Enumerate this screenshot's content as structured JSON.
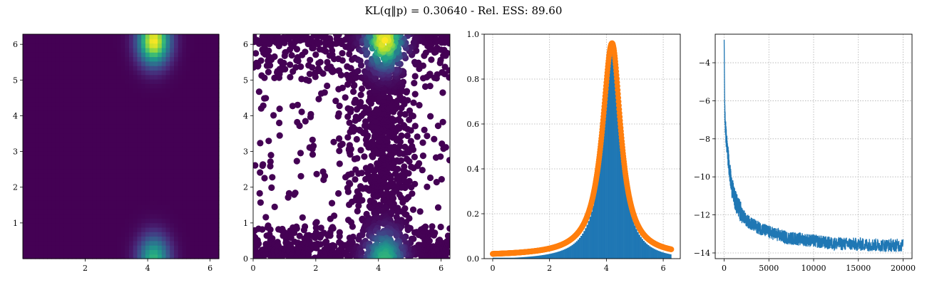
{
  "figure": {
    "title": "KL(q‖p) = 0.30640 - Rel. ESS: 89.60"
  },
  "colors": {
    "viridis_dark": "#440154",
    "viridis_teal": "#21918c",
    "viridis_green": "#5ec962",
    "viridis_yellow": "#fde725",
    "hist_blue": "#1f77b4",
    "density_orange": "#ff7f0e",
    "line_blue": "#1f77b4",
    "grid_gray": "#b0b0b0"
  },
  "chart_data": [
    {
      "type": "heatmap",
      "title": "",
      "xlabel": "",
      "ylabel": "",
      "xlim": [
        0,
        6.283
      ],
      "ylim": [
        0,
        6.283
      ],
      "xticks": [
        2,
        4,
        6
      ],
      "yticks": [
        1,
        2,
        3,
        4,
        5,
        6
      ],
      "grid": false,
      "density_peaks": [
        {
          "x": 4.2,
          "y": 6.1,
          "level": 1.0
        },
        {
          "x": 4.2,
          "y": 0.0,
          "level": 0.65
        }
      ]
    },
    {
      "type": "scatter",
      "title": "",
      "xlabel": "",
      "ylabel": "",
      "xlim": [
        0,
        6.283
      ],
      "ylim": [
        0,
        6.283
      ],
      "xticks": [
        0,
        2,
        4,
        6
      ],
      "yticks": [
        0,
        1,
        2,
        3,
        4,
        5,
        6
      ],
      "grid": false,
      "color_by": "density",
      "density_peaks": [
        {
          "x": 4.2,
          "y": 6.1,
          "level": 1.0
        },
        {
          "x": 4.2,
          "y": 0.0,
          "level": 0.65
        }
      ]
    },
    {
      "type": "area",
      "title": "",
      "xlabel": "",
      "ylabel": "",
      "xlim": [
        -0.3,
        6.6
      ],
      "ylim": [
        0,
        1.0
      ],
      "xticks": [
        0,
        2,
        4,
        6
      ],
      "yticks": [
        0.0,
        0.2,
        0.4,
        0.6,
        0.8,
        1.0
      ],
      "grid": true,
      "series": [
        {
          "kind": "histogram",
          "peak_x": 4.2,
          "peak_y": 0.95,
          "width_left": 0.42,
          "width_right": 0.38,
          "baseline": 0.0
        },
        {
          "kind": "density",
          "peak_x": 4.2,
          "peak_y": 0.96,
          "width_left": 0.45,
          "width_right": 0.4,
          "baseline": 0.012
        }
      ]
    },
    {
      "type": "line",
      "title": "",
      "xlabel": "",
      "ylabel": "",
      "xlim": [
        -1000,
        21000
      ],
      "ylim": [
        -14.3,
        -2.5
      ],
      "xticks": [
        0,
        5000,
        10000,
        15000,
        20000
      ],
      "yticks": [
        -14,
        -12,
        -10,
        -8,
        -6,
        -4
      ],
      "grid": true,
      "series": [
        {
          "points": [
            [
              0,
              -2.8
            ],
            [
              30,
              -4.5
            ],
            [
              60,
              -6.2
            ],
            [
              100,
              -7.0
            ],
            [
              200,
              -7.8
            ],
            [
              300,
              -8.3
            ],
            [
              500,
              -9.2
            ],
            [
              800,
              -10.4
            ],
            [
              1200,
              -11.2
            ],
            [
              1800,
              -11.8
            ],
            [
              2500,
              -12.3
            ],
            [
              3500,
              -12.6
            ],
            [
              5000,
              -12.9
            ],
            [
              7000,
              -13.2
            ],
            [
              9000,
              -13.3
            ],
            [
              12000,
              -13.5
            ],
            [
              15000,
              -13.55
            ],
            [
              18000,
              -13.6
            ],
            [
              20000,
              -13.6
            ]
          ],
          "noise": 0.35
        }
      ]
    }
  ]
}
